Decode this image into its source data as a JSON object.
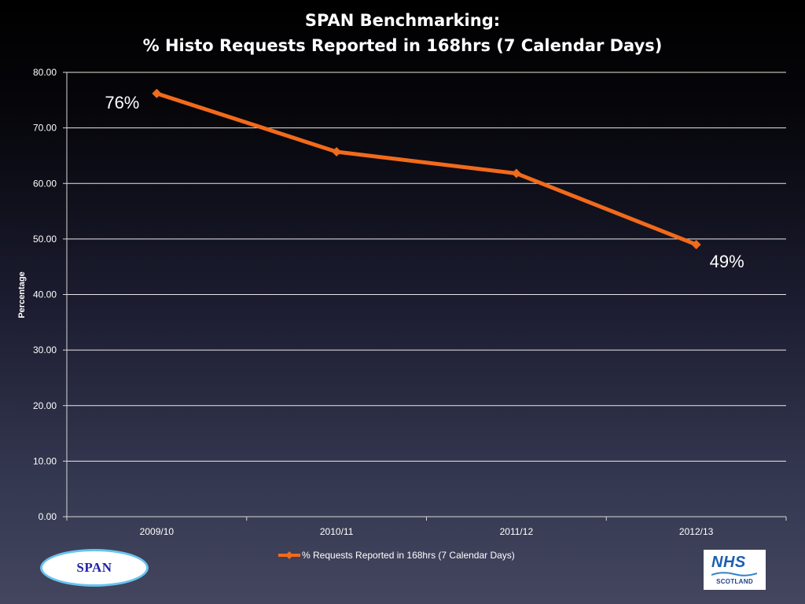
{
  "title_line_1": "SPAN Benchmarking:",
  "title_line_2": "% Histo Requests Reported in 168hrs (7 Calendar Days)",
  "chart_data": {
    "type": "line",
    "title": "SPAN Benchmarking: % Histo Requests Reported in 168hrs (7 Calendar Days)",
    "xlabel": "",
    "ylabel": "Percentage",
    "categories": [
      "2009/10",
      "2010/11",
      "2011/12",
      "2012/13"
    ],
    "ylim": [
      0,
      80
    ],
    "yticks": [
      "0.00",
      "10.00",
      "20.00",
      "30.00",
      "40.00",
      "50.00",
      "60.00",
      "70.00",
      "80.00"
    ],
    "grid": true,
    "legend_position": "bottom",
    "series": [
      {
        "name": "% Requests Reported in 168hrs (7 Calendar Days)",
        "values": [
          76.2,
          65.7,
          61.8,
          49.0
        ],
        "color": "#f26a1b",
        "marker": "diamond"
      }
    ],
    "annotations": [
      {
        "text": "76%",
        "point_index": 0
      },
      {
        "text": "49%",
        "point_index": 3
      }
    ]
  },
  "logos": {
    "span_text": "SPAN",
    "nhs_text": "NHS",
    "nhs_subtext": "SCOTLAND"
  },
  "colors": {
    "line": "#f26a1b",
    "grid": "#ffffff",
    "text": "#ffffff"
  }
}
